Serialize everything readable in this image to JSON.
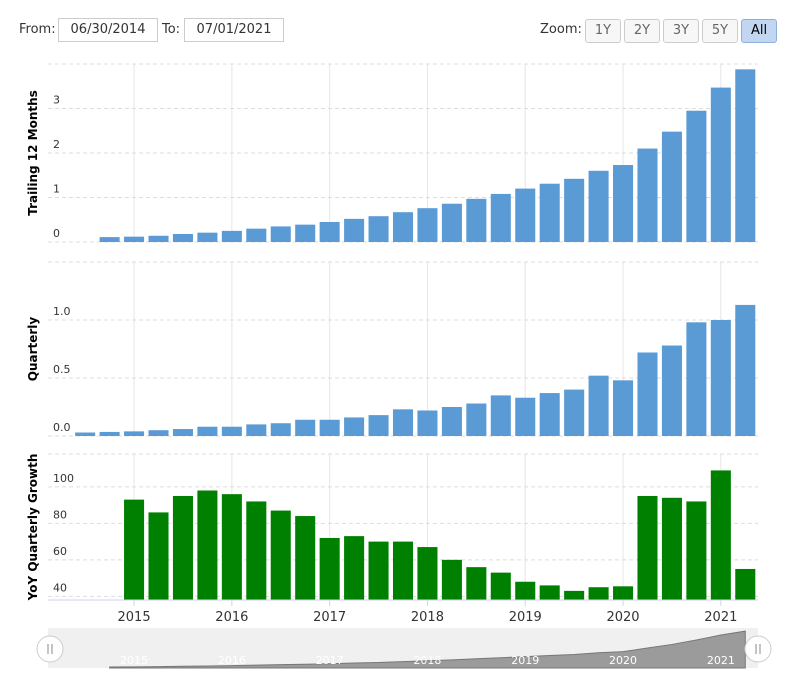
{
  "range_selector": {
    "from_label": "From:",
    "from": "06/30/2014",
    "to_label": "To:",
    "to": "07/01/2021",
    "zoom_label": "Zoom:",
    "buttons": [
      "1Y",
      "2Y",
      "3Y",
      "5Y",
      "All"
    ]
  },
  "chart_data": [
    {
      "type": "bar",
      "y_label": "Trailing 12 Months",
      "color": "#5b9bd5",
      "grid": true,
      "x": [
        2014.5,
        2014.75,
        2015.0,
        2015.25,
        2015.5,
        2015.75,
        2016.0,
        2016.25,
        2016.5,
        2016.75,
        2017.0,
        2017.25,
        2017.5,
        2017.75,
        2018.0,
        2018.25,
        2018.5,
        2018.75,
        2019.0,
        2019.25,
        2019.5,
        2019.75,
        2020.0,
        2020.25,
        2020.5,
        2020.75,
        2021.0,
        2021.25
      ],
      "values": [
        null,
        0.11,
        0.12,
        0.14,
        0.18,
        0.21,
        0.25,
        0.3,
        0.35,
        0.39,
        0.45,
        0.52,
        0.58,
        0.67,
        0.76,
        0.86,
        0.97,
        1.08,
        1.2,
        1.31,
        1.42,
        1.6,
        1.73,
        2.1,
        2.48,
        2.95,
        3.47,
        3.88
      ],
      "xlim": [
        2014.12,
        2021.38
      ],
      "xticks": [
        2015,
        2016,
        2017,
        2018,
        2019,
        2020,
        2021
      ],
      "ylim": [
        0,
        4
      ],
      "yticks": [
        0,
        1,
        2,
        3
      ]
    },
    {
      "type": "bar",
      "y_label": "Quarterly",
      "color": "#5b9bd5",
      "grid": true,
      "x": [
        2014.5,
        2014.75,
        2015.0,
        2015.25,
        2015.5,
        2015.75,
        2016.0,
        2016.25,
        2016.5,
        2016.75,
        2017.0,
        2017.25,
        2017.5,
        2017.75,
        2018.0,
        2018.25,
        2018.5,
        2018.75,
        2019.0,
        2019.25,
        2019.5,
        2019.75,
        2020.0,
        2020.25,
        2020.5,
        2020.75,
        2021.0,
        2021.25
      ],
      "values": [
        0.03,
        0.035,
        0.04,
        0.05,
        0.06,
        0.08,
        0.08,
        0.1,
        0.11,
        0.14,
        0.14,
        0.16,
        0.18,
        0.23,
        0.22,
        0.25,
        0.28,
        0.35,
        0.33,
        0.37,
        0.4,
        0.52,
        0.48,
        0.72,
        0.78,
        0.98,
        1.0,
        1.13
      ],
      "xlim": [
        2014.12,
        2021.38
      ],
      "xticks": [
        2015,
        2016,
        2017,
        2018,
        2019,
        2020,
        2021
      ],
      "ylim": [
        0,
        1.5
      ],
      "yticks": [
        {
          "value": 0,
          "label": "0.0"
        },
        0.5,
        {
          "value": 1,
          "label": "1.0"
        }
      ]
    },
    {
      "type": "bar",
      "y_label": "YoY Quarterly Growth",
      "color": "#008000",
      "grid": true,
      "x": [
        2014.5,
        2014.75,
        2015.0,
        2015.25,
        2015.5,
        2015.75,
        2016.0,
        2016.25,
        2016.5,
        2016.75,
        2017.0,
        2017.25,
        2017.5,
        2017.75,
        2018.0,
        2018.25,
        2018.5,
        2018.75,
        2019.0,
        2019.25,
        2019.5,
        2019.75,
        2020.0,
        2020.25,
        2020.5,
        2020.75,
        2021.0,
        2021.25
      ],
      "values": [
        null,
        null,
        93,
        86,
        95,
        98,
        96,
        92,
        87,
        84,
        72,
        73,
        70,
        70,
        67,
        60,
        56,
        53,
        48,
        46,
        43,
        45,
        45.5,
        95,
        94,
        92,
        109,
        55
      ],
      "xlim": [
        2014.12,
        2021.38
      ],
      "xticks": [
        2015,
        2016,
        2017,
        2018,
        2019,
        2020,
        2021
      ],
      "ylim": [
        38,
        118
      ],
      "yticks": [
        40,
        60,
        80,
        100
      ]
    }
  ]
}
